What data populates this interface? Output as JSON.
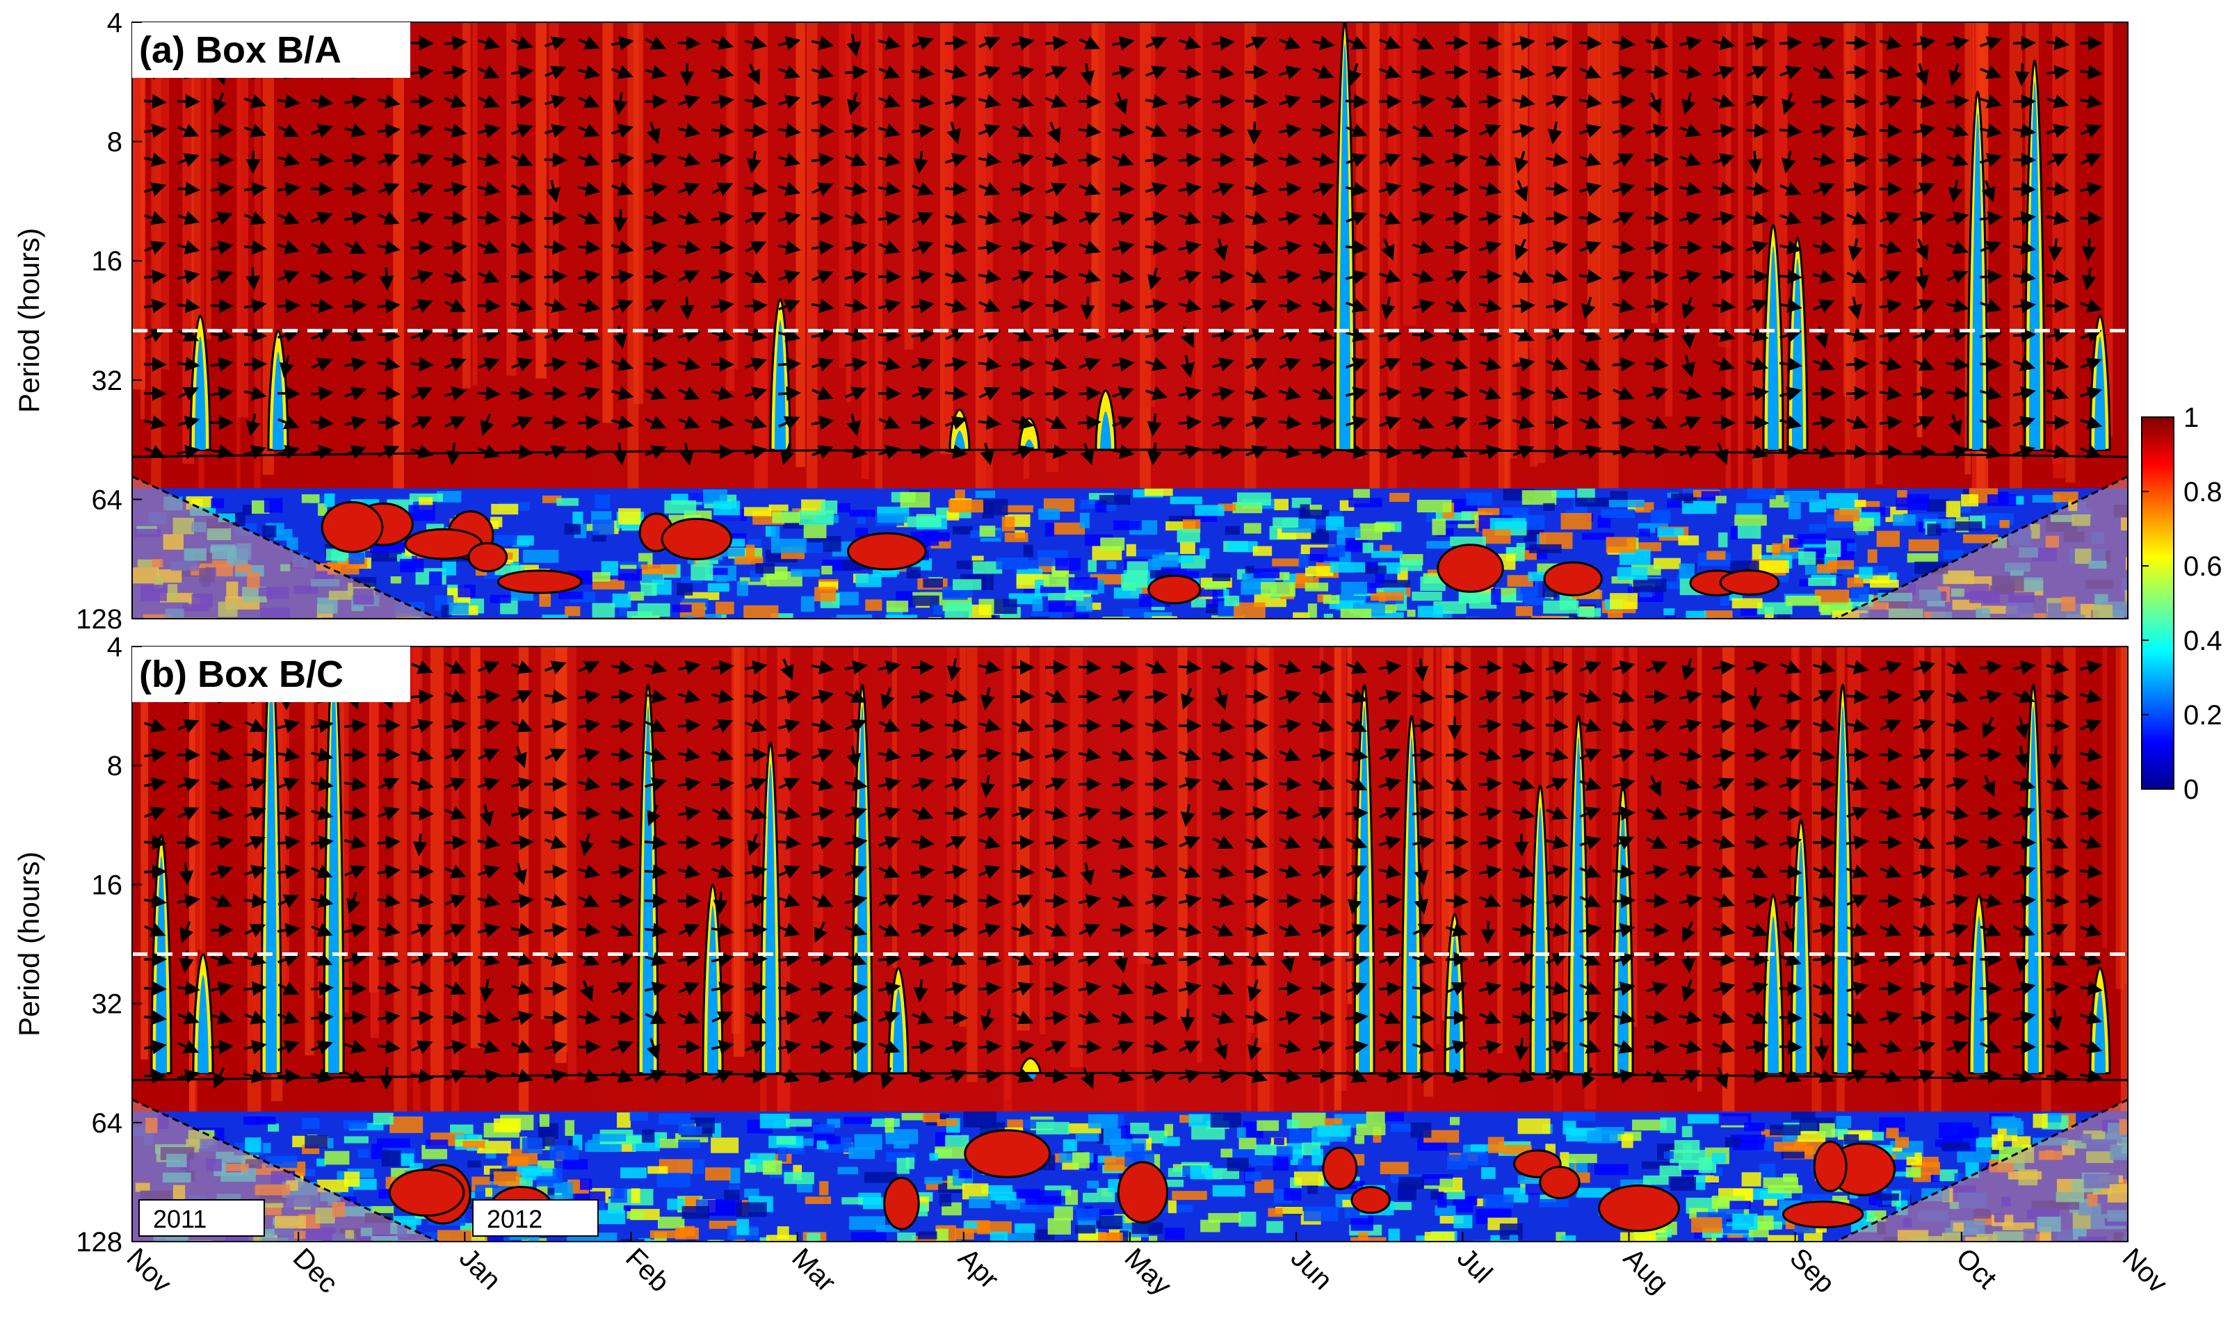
{
  "chart_data": {
    "type": "heatmap",
    "description_type": "wavelet coherence",
    "panels": [
      {
        "label": "(a) Box B/A",
        "ylabel": "Period (hours)",
        "yticks": [
          4,
          8,
          16,
          32,
          64,
          128
        ],
        "y_scale": "log2",
        "reference_period_hours": 24,
        "reference_line_style": "white dashed"
      },
      {
        "label": "(b) Box B/C",
        "ylabel": "Period (hours)",
        "yticks": [
          4,
          8,
          16,
          32,
          64,
          128
        ],
        "y_scale": "log2",
        "reference_period_hours": 24,
        "reference_line_style": "white dashed"
      }
    ],
    "xticks": [
      "Nov",
      "Dec",
      "Jan",
      "Feb",
      "Mar",
      "Apr",
      "May",
      "Jun",
      "Jul",
      "Aug",
      "Sep",
      "Oct",
      "Nov"
    ],
    "year_labels": [
      "2011",
      "2012"
    ],
    "colorbar": {
      "min": 0,
      "max": 1,
      "ticks": [
        "0",
        "0.2",
        "0.4",
        "0.6",
        "0.8",
        "1"
      ],
      "colormap": "jet"
    },
    "colors": {
      "high_coherence": "#a00000",
      "low_coherence": "#0018c8",
      "reference_line": "#ffffff",
      "cone_of_influence": "#d98a88"
    }
  }
}
